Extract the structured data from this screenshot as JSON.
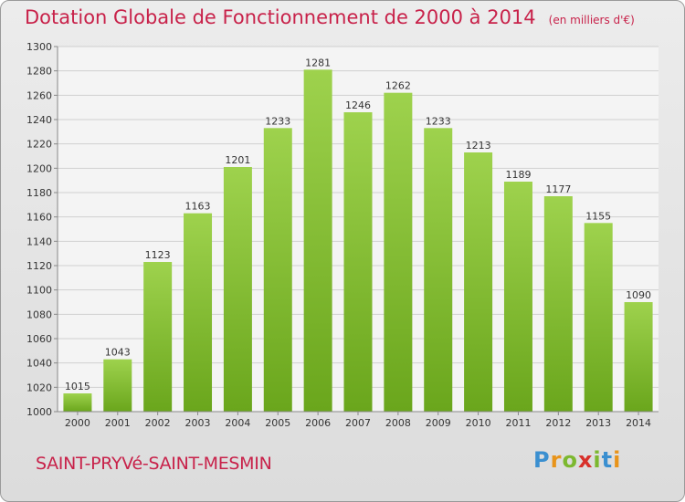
{
  "header": {
    "title": "Dotation Globale de Fonctionnement de 2000 à 2014",
    "unit": "(en milliers d'€)"
  },
  "footer": {
    "commune": "SAINT-PRYVé-SAINT-MESMIN",
    "logo": "Proxiti",
    "logo_colors": [
      "#3a8fd0",
      "#e8941a",
      "#7cb82f",
      "#d8302a",
      "#7cb82f",
      "#3a8fd0",
      "#e8941a"
    ]
  },
  "chart_data": {
    "type": "bar",
    "title": "Dotation Globale de Fonctionnement de 2000 à 2014",
    "subtitle": "(en milliers d'€)",
    "xlabel": "",
    "ylabel": "",
    "categories": [
      "2000",
      "2001",
      "2002",
      "2003",
      "2004",
      "2005",
      "2006",
      "2007",
      "2008",
      "2009",
      "2010",
      "2011",
      "2012",
      "2013",
      "2014"
    ],
    "values": [
      1015,
      1043,
      1123,
      1163,
      1201,
      1233,
      1281,
      1246,
      1262,
      1233,
      1213,
      1189,
      1177,
      1155,
      1090
    ],
    "ylim": [
      1000,
      1300
    ],
    "yticks": [
      1000,
      1020,
      1040,
      1060,
      1080,
      1100,
      1120,
      1140,
      1160,
      1180,
      1200,
      1220,
      1240,
      1260,
      1280,
      1300
    ],
    "grid": true,
    "bar_color": "#8cc63f"
  }
}
